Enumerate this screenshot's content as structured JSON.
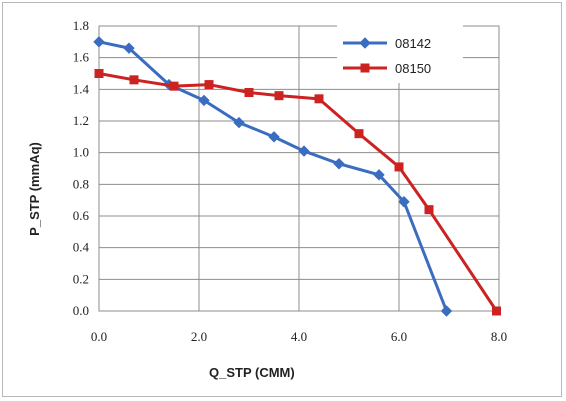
{
  "chart_data": {
    "type": "line",
    "xlabel": "Q_STP (CMM)",
    "ylabel": "P_STP (mmAq)",
    "xlim": [
      0,
      8
    ],
    "ylim": [
      0,
      1.8
    ],
    "x_ticks": [
      "0.0",
      "2.0",
      "4.0",
      "6.0",
      "8.0"
    ],
    "y_ticks": [
      "0.0",
      "0.2",
      "0.4",
      "0.6",
      "0.8",
      "1.0",
      "1.2",
      "1.4",
      "1.6",
      "1.8"
    ],
    "x_tick_values": [
      0,
      2,
      4,
      6,
      8
    ],
    "y_tick_values": [
      0,
      0.2,
      0.4,
      0.6,
      0.8,
      1.0,
      1.2,
      1.4,
      1.6,
      1.8
    ],
    "grid": true,
    "legend_position": "top-right",
    "series": [
      {
        "name": "08142",
        "color": "#3a6cc0",
        "marker": "diamond",
        "points": [
          [
            0.0,
            1.7
          ],
          [
            0.6,
            1.66
          ],
          [
            1.4,
            1.43
          ],
          [
            2.1,
            1.33
          ],
          [
            2.8,
            1.19
          ],
          [
            3.5,
            1.1
          ],
          [
            4.1,
            1.01
          ],
          [
            4.8,
            0.93
          ],
          [
            5.6,
            0.86
          ],
          [
            6.1,
            0.69
          ],
          [
            6.95,
            0.0
          ]
        ]
      },
      {
        "name": "08150",
        "color": "#cc2222",
        "marker": "square",
        "points": [
          [
            0.0,
            1.5
          ],
          [
            0.7,
            1.46
          ],
          [
            1.5,
            1.42
          ],
          [
            2.2,
            1.43
          ],
          [
            3.0,
            1.38
          ],
          [
            3.6,
            1.36
          ],
          [
            4.4,
            1.34
          ],
          [
            5.2,
            1.12
          ],
          [
            6.0,
            0.91
          ],
          [
            6.6,
            0.64
          ],
          [
            7.95,
            0.0
          ]
        ]
      }
    ]
  }
}
